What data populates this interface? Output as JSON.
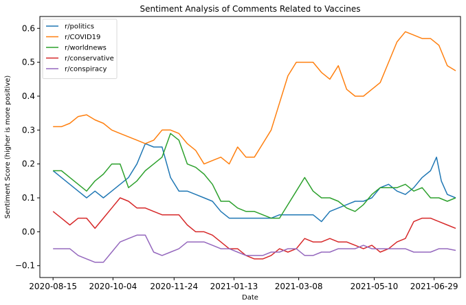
{
  "chart_data": {
    "type": "line",
    "title": "Sentiment Analysis of Comments Related to Vaccines",
    "xlabel": "Date",
    "ylabel": "Sentiment Score (higher is more positive)",
    "x_range": [
      "2020-08-04",
      "2021-07-21"
    ],
    "ylim": [
      -0.135,
      0.635
    ],
    "x_ticks": [
      "2020-08-15",
      "2020-10-04",
      "2020-11-24",
      "2021-01-13",
      "2021-03-08",
      "2021-05-10",
      "2021-06-29"
    ],
    "y_ticks": [
      -0.1,
      0.0,
      0.1,
      0.2,
      0.3,
      0.4,
      0.5,
      0.6
    ],
    "y_tick_labels": [
      "−0.1",
      "0.0",
      "0.1",
      "0.2",
      "0.3",
      "0.4",
      "0.5",
      "0.6"
    ],
    "grid": false,
    "legend_position": "top-left",
    "series": [
      {
        "name": "r/politics",
        "color": "#1f77b4",
        "points": [
          [
            "2020-08-15",
            0.18
          ],
          [
            "2020-08-22",
            0.16
          ],
          [
            "2020-08-29",
            0.14
          ],
          [
            "2020-09-05",
            0.12
          ],
          [
            "2020-09-12",
            0.1
          ],
          [
            "2020-09-19",
            0.12
          ],
          [
            "2020-09-26",
            0.1
          ],
          [
            "2020-10-03",
            0.12
          ],
          [
            "2020-10-10",
            0.14
          ],
          [
            "2020-10-17",
            0.16
          ],
          [
            "2020-10-24",
            0.2
          ],
          [
            "2020-10-31",
            0.26
          ],
          [
            "2020-11-07",
            0.25
          ],
          [
            "2020-11-14",
            0.25
          ],
          [
            "2020-11-21",
            0.16
          ],
          [
            "2020-11-28",
            0.12
          ],
          [
            "2020-12-05",
            0.12
          ],
          [
            "2020-12-12",
            0.11
          ],
          [
            "2020-12-19",
            0.1
          ],
          [
            "2020-12-26",
            0.09
          ],
          [
            "2021-01-02",
            0.06
          ],
          [
            "2021-01-09",
            0.04
          ],
          [
            "2021-01-16",
            0.04
          ],
          [
            "2021-01-23",
            0.04
          ],
          [
            "2021-01-30",
            0.04
          ],
          [
            "2021-02-06",
            0.04
          ],
          [
            "2021-02-13",
            0.04
          ],
          [
            "2021-02-20",
            0.05
          ],
          [
            "2021-02-27",
            0.05
          ],
          [
            "2021-03-06",
            0.05
          ],
          [
            "2021-03-13",
            0.05
          ],
          [
            "2021-03-20",
            0.05
          ],
          [
            "2021-03-27",
            0.03
          ],
          [
            "2021-04-03",
            0.06
          ],
          [
            "2021-04-10",
            0.07
          ],
          [
            "2021-04-17",
            0.08
          ],
          [
            "2021-04-24",
            0.09
          ],
          [
            "2021-05-01",
            0.09
          ],
          [
            "2021-05-08",
            0.1
          ],
          [
            "2021-05-15",
            0.13
          ],
          [
            "2021-05-22",
            0.14
          ],
          [
            "2021-05-29",
            0.12
          ],
          [
            "2021-06-05",
            0.11
          ],
          [
            "2021-06-12",
            0.13
          ],
          [
            "2021-06-19",
            0.16
          ],
          [
            "2021-06-26",
            0.18
          ],
          [
            "2021-07-01",
            0.22
          ],
          [
            "2021-07-05",
            0.15
          ],
          [
            "2021-07-10",
            0.11
          ],
          [
            "2021-07-17",
            0.1
          ]
        ]
      },
      {
        "name": "r/COVID19",
        "color": "#ff7f0e",
        "points": [
          [
            "2020-08-15",
            0.31
          ],
          [
            "2020-08-22",
            0.31
          ],
          [
            "2020-08-29",
            0.32
          ],
          [
            "2020-09-05",
            0.34
          ],
          [
            "2020-09-12",
            0.345
          ],
          [
            "2020-09-19",
            0.33
          ],
          [
            "2020-09-26",
            0.32
          ],
          [
            "2020-10-03",
            0.3
          ],
          [
            "2020-10-10",
            0.29
          ],
          [
            "2020-10-17",
            0.28
          ],
          [
            "2020-10-24",
            0.27
          ],
          [
            "2020-10-31",
            0.26
          ],
          [
            "2020-11-07",
            0.27
          ],
          [
            "2020-11-14",
            0.3
          ],
          [
            "2020-11-21",
            0.3
          ],
          [
            "2020-11-28",
            0.29
          ],
          [
            "2020-12-05",
            0.26
          ],
          [
            "2020-12-12",
            0.24
          ],
          [
            "2020-12-19",
            0.2
          ],
          [
            "2020-12-26",
            0.21
          ],
          [
            "2021-01-02",
            0.22
          ],
          [
            "2021-01-09",
            0.2
          ],
          [
            "2021-01-16",
            0.25
          ],
          [
            "2021-01-23",
            0.22
          ],
          [
            "2021-01-30",
            0.22
          ],
          [
            "2021-02-06",
            0.26
          ],
          [
            "2021-02-13",
            0.3
          ],
          [
            "2021-02-20",
            0.38
          ],
          [
            "2021-02-27",
            0.46
          ],
          [
            "2021-03-06",
            0.5
          ],
          [
            "2021-03-13",
            0.5
          ],
          [
            "2021-03-20",
            0.5
          ],
          [
            "2021-03-27",
            0.47
          ],
          [
            "2021-04-03",
            0.45
          ],
          [
            "2021-04-10",
            0.49
          ],
          [
            "2021-04-17",
            0.42
          ],
          [
            "2021-04-24",
            0.4
          ],
          [
            "2021-05-01",
            0.4
          ],
          [
            "2021-05-08",
            0.42
          ],
          [
            "2021-05-15",
            0.44
          ],
          [
            "2021-05-22",
            0.5
          ],
          [
            "2021-05-29",
            0.56
          ],
          [
            "2021-06-05",
            0.59
          ],
          [
            "2021-06-12",
            0.58
          ],
          [
            "2021-06-19",
            0.57
          ],
          [
            "2021-06-26",
            0.57
          ],
          [
            "2021-07-03",
            0.55
          ],
          [
            "2021-07-10",
            0.49
          ],
          [
            "2021-07-17",
            0.475
          ]
        ]
      },
      {
        "name": "r/worldnews",
        "color": "#2ca02c",
        "points": [
          [
            "2020-08-15",
            0.18
          ],
          [
            "2020-08-22",
            0.18
          ],
          [
            "2020-08-29",
            0.16
          ],
          [
            "2020-09-05",
            0.14
          ],
          [
            "2020-09-12",
            0.12
          ],
          [
            "2020-09-19",
            0.15
          ],
          [
            "2020-09-26",
            0.17
          ],
          [
            "2020-10-03",
            0.2
          ],
          [
            "2020-10-10",
            0.2
          ],
          [
            "2020-10-17",
            0.13
          ],
          [
            "2020-10-24",
            0.15
          ],
          [
            "2020-10-31",
            0.18
          ],
          [
            "2020-11-07",
            0.2
          ],
          [
            "2020-11-14",
            0.22
          ],
          [
            "2020-11-21",
            0.29
          ],
          [
            "2020-11-28",
            0.27
          ],
          [
            "2020-12-05",
            0.2
          ],
          [
            "2020-12-12",
            0.19
          ],
          [
            "2020-12-19",
            0.17
          ],
          [
            "2020-12-26",
            0.14
          ],
          [
            "2021-01-02",
            0.09
          ],
          [
            "2021-01-09",
            0.09
          ],
          [
            "2021-01-16",
            0.07
          ],
          [
            "2021-01-23",
            0.06
          ],
          [
            "2021-01-30",
            0.06
          ],
          [
            "2021-02-06",
            0.05
          ],
          [
            "2021-02-13",
            0.04
          ],
          [
            "2021-02-20",
            0.04
          ],
          [
            "2021-02-27",
            0.08
          ],
          [
            "2021-03-06",
            0.12
          ],
          [
            "2021-03-13",
            0.16
          ],
          [
            "2021-03-20",
            0.12
          ],
          [
            "2021-03-27",
            0.1
          ],
          [
            "2021-04-03",
            0.1
          ],
          [
            "2021-04-10",
            0.09
          ],
          [
            "2021-04-17",
            0.07
          ],
          [
            "2021-04-24",
            0.06
          ],
          [
            "2021-05-01",
            0.08
          ],
          [
            "2021-05-08",
            0.11
          ],
          [
            "2021-05-15",
            0.13
          ],
          [
            "2021-05-22",
            0.13
          ],
          [
            "2021-05-29",
            0.13
          ],
          [
            "2021-06-05",
            0.14
          ],
          [
            "2021-06-12",
            0.12
          ],
          [
            "2021-06-19",
            0.13
          ],
          [
            "2021-06-26",
            0.1
          ],
          [
            "2021-07-03",
            0.1
          ],
          [
            "2021-07-10",
            0.09
          ],
          [
            "2021-07-17",
            0.1
          ]
        ]
      },
      {
        "name": "r/conservative",
        "color": "#d62728",
        "points": [
          [
            "2020-08-15",
            0.06
          ],
          [
            "2020-08-22",
            0.04
          ],
          [
            "2020-08-29",
            0.02
          ],
          [
            "2020-09-05",
            0.04
          ],
          [
            "2020-09-12",
            0.04
          ],
          [
            "2020-09-19",
            0.01
          ],
          [
            "2020-09-26",
            0.04
          ],
          [
            "2020-10-03",
            0.07
          ],
          [
            "2020-10-10",
            0.1
          ],
          [
            "2020-10-17",
            0.09
          ],
          [
            "2020-10-24",
            0.07
          ],
          [
            "2020-10-31",
            0.07
          ],
          [
            "2020-11-07",
            0.06
          ],
          [
            "2020-11-14",
            0.05
          ],
          [
            "2020-11-21",
            0.05
          ],
          [
            "2020-11-28",
            0.05
          ],
          [
            "2020-12-05",
            0.02
          ],
          [
            "2020-12-12",
            0.0
          ],
          [
            "2020-12-19",
            0.0
          ],
          [
            "2020-12-26",
            -0.01
          ],
          [
            "2021-01-02",
            -0.03
          ],
          [
            "2021-01-09",
            -0.05
          ],
          [
            "2021-01-16",
            -0.05
          ],
          [
            "2021-01-23",
            -0.07
          ],
          [
            "2021-01-30",
            -0.08
          ],
          [
            "2021-02-06",
            -0.08
          ],
          [
            "2021-02-13",
            -0.07
          ],
          [
            "2021-02-20",
            -0.05
          ],
          [
            "2021-02-27",
            -0.06
          ],
          [
            "2021-03-06",
            -0.05
          ],
          [
            "2021-03-13",
            -0.02
          ],
          [
            "2021-03-20",
            -0.03
          ],
          [
            "2021-03-27",
            -0.03
          ],
          [
            "2021-04-03",
            -0.02
          ],
          [
            "2021-04-10",
            -0.03
          ],
          [
            "2021-04-17",
            -0.03
          ],
          [
            "2021-04-24",
            -0.04
          ],
          [
            "2021-05-01",
            -0.05
          ],
          [
            "2021-05-08",
            -0.04
          ],
          [
            "2021-05-15",
            -0.06
          ],
          [
            "2021-05-22",
            -0.05
          ],
          [
            "2021-05-29",
            -0.03
          ],
          [
            "2021-06-05",
            -0.02
          ],
          [
            "2021-06-12",
            0.03
          ],
          [
            "2021-06-19",
            0.04
          ],
          [
            "2021-06-26",
            0.04
          ],
          [
            "2021-07-03",
            0.03
          ],
          [
            "2021-07-10",
            0.02
          ],
          [
            "2021-07-17",
            0.01
          ]
        ]
      },
      {
        "name": "r/conspiracy",
        "color": "#9467bd",
        "points": [
          [
            "2020-08-15",
            -0.05
          ],
          [
            "2020-08-22",
            -0.05
          ],
          [
            "2020-08-29",
            -0.05
          ],
          [
            "2020-09-05",
            -0.07
          ],
          [
            "2020-09-12",
            -0.08
          ],
          [
            "2020-09-19",
            -0.09
          ],
          [
            "2020-09-26",
            -0.09
          ],
          [
            "2020-10-03",
            -0.06
          ],
          [
            "2020-10-10",
            -0.03
          ],
          [
            "2020-10-17",
            -0.02
          ],
          [
            "2020-10-24",
            -0.01
          ],
          [
            "2020-10-31",
            -0.01
          ],
          [
            "2020-11-07",
            -0.06
          ],
          [
            "2020-11-14",
            -0.07
          ],
          [
            "2020-11-21",
            -0.06
          ],
          [
            "2020-11-28",
            -0.05
          ],
          [
            "2020-12-05",
            -0.03
          ],
          [
            "2020-12-12",
            -0.03
          ],
          [
            "2020-12-19",
            -0.03
          ],
          [
            "2020-12-26",
            -0.04
          ],
          [
            "2021-01-02",
            -0.05
          ],
          [
            "2021-01-09",
            -0.05
          ],
          [
            "2021-01-16",
            -0.06
          ],
          [
            "2021-01-23",
            -0.07
          ],
          [
            "2021-01-30",
            -0.07
          ],
          [
            "2021-02-06",
            -0.07
          ],
          [
            "2021-02-13",
            -0.06
          ],
          [
            "2021-02-20",
            -0.06
          ],
          [
            "2021-02-27",
            -0.05
          ],
          [
            "2021-03-06",
            -0.05
          ],
          [
            "2021-03-13",
            -0.07
          ],
          [
            "2021-03-20",
            -0.07
          ],
          [
            "2021-03-27",
            -0.06
          ],
          [
            "2021-04-03",
            -0.06
          ],
          [
            "2021-04-10",
            -0.05
          ],
          [
            "2021-04-17",
            -0.05
          ],
          [
            "2021-04-24",
            -0.05
          ],
          [
            "2021-05-01",
            -0.04
          ],
          [
            "2021-05-08",
            -0.05
          ],
          [
            "2021-05-15",
            -0.05
          ],
          [
            "2021-05-22",
            -0.05
          ],
          [
            "2021-05-29",
            -0.05
          ],
          [
            "2021-06-05",
            -0.05
          ],
          [
            "2021-06-12",
            -0.06
          ],
          [
            "2021-06-19",
            -0.06
          ],
          [
            "2021-06-26",
            -0.06
          ],
          [
            "2021-07-03",
            -0.05
          ],
          [
            "2021-07-10",
            -0.05
          ],
          [
            "2021-07-17",
            -0.055
          ]
        ]
      }
    ]
  }
}
